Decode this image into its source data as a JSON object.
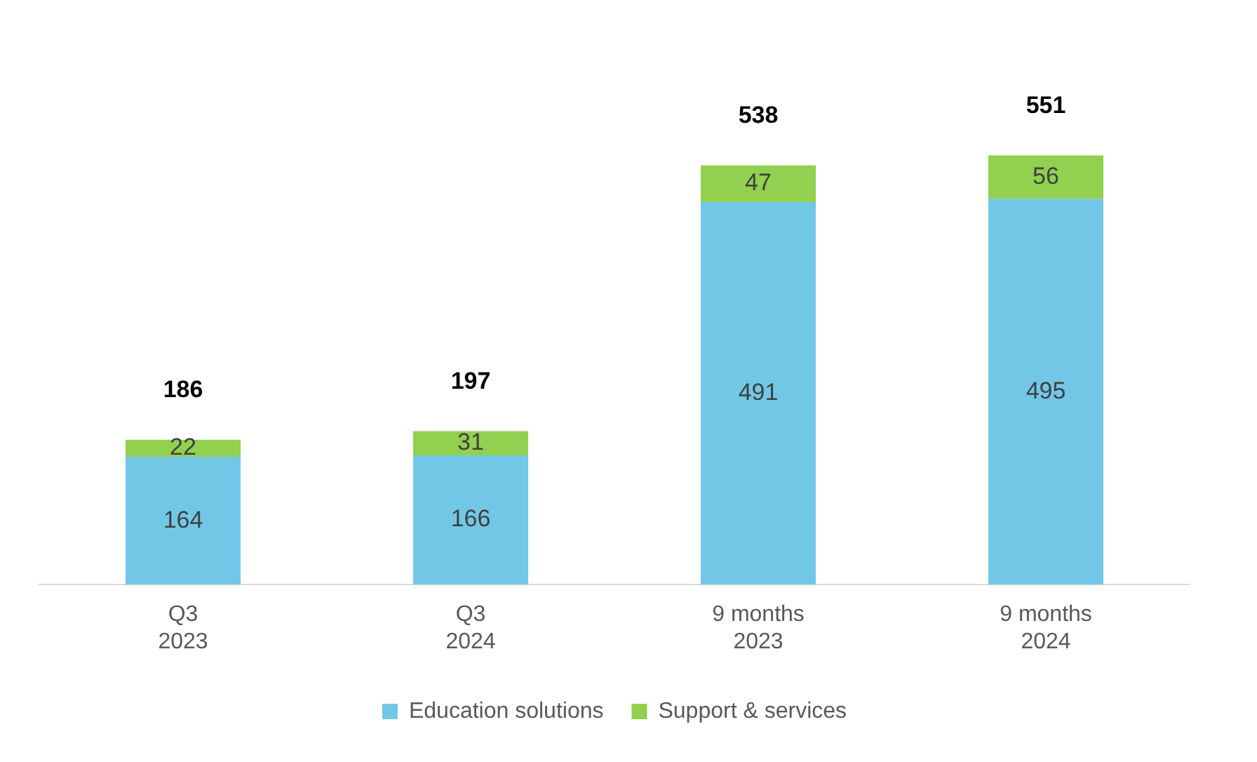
{
  "chart_data": {
    "type": "bar",
    "stacked": true,
    "categories": [
      "Q3\n2023",
      "Q3\n2024",
      "9 months\n2023",
      "9 months\n2024"
    ],
    "series": [
      {
        "name": "Education solutions",
        "color": "#72c7e6",
        "values": [
          164,
          166,
          491,
          495
        ]
      },
      {
        "name": "Support & services",
        "color": "#92d050",
        "values": [
          22,
          31,
          47,
          56
        ]
      }
    ],
    "data_labels": true,
    "totals": [
      "186",
      "197",
      "538",
      "551"
    ],
    "legend": "bottom",
    "grid": false
  }
}
